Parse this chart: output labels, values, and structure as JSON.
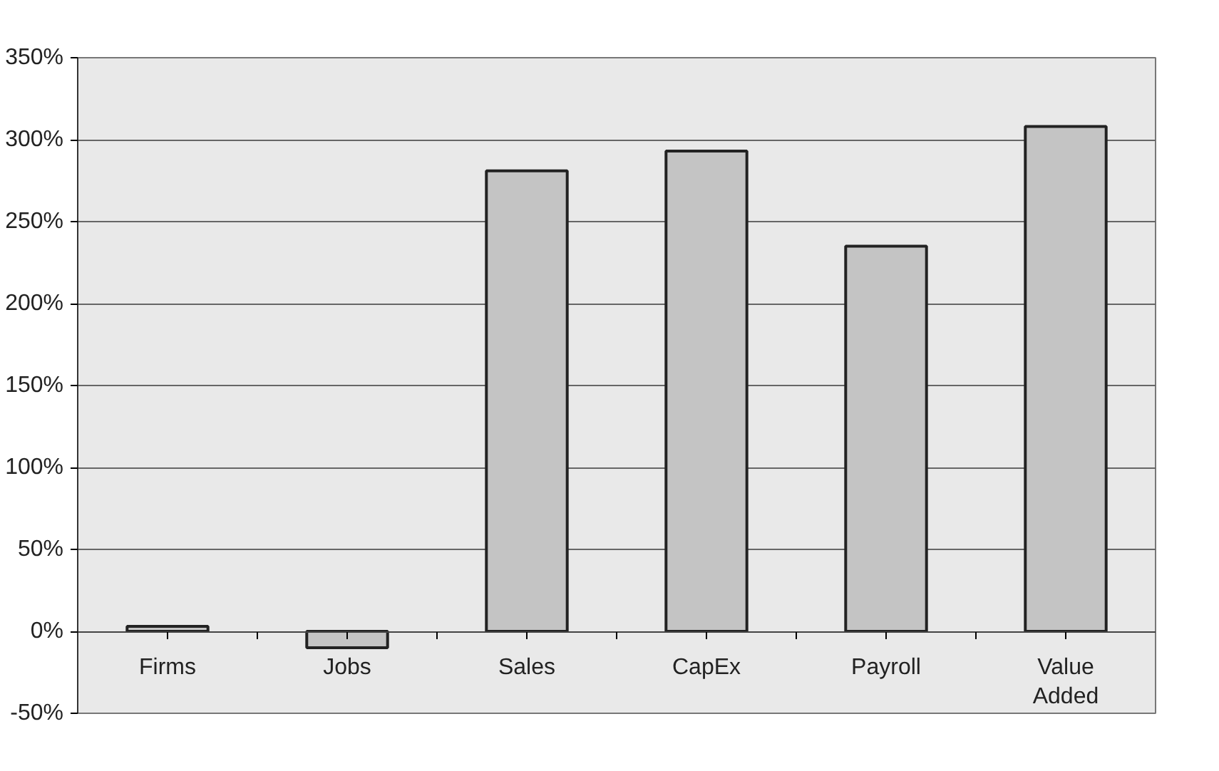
{
  "chart_data": {
    "type": "bar",
    "categories": [
      "Firms",
      "Jobs",
      "Sales",
      "CapEx",
      "Payroll",
      "Value Added"
    ],
    "values": [
      3,
      -10,
      281,
      293,
      235,
      308
    ],
    "color": "#c4c4c4",
    "ylim": [
      -50,
      350
    ],
    "yticks": [
      {
        "value": -50,
        "label": "-50%"
      },
      {
        "value": 0,
        "label": "0%"
      },
      {
        "value": 50,
        "label": "50%"
      },
      {
        "value": 100,
        "label": "100%"
      },
      {
        "value": 150,
        "label": "150%"
      },
      {
        "value": 200,
        "label": "200%"
      },
      {
        "value": 250,
        "label": "250%"
      },
      {
        "value": 300,
        "label": "300%"
      },
      {
        "value": 350,
        "label": "350%"
      }
    ],
    "grid": "y"
  }
}
